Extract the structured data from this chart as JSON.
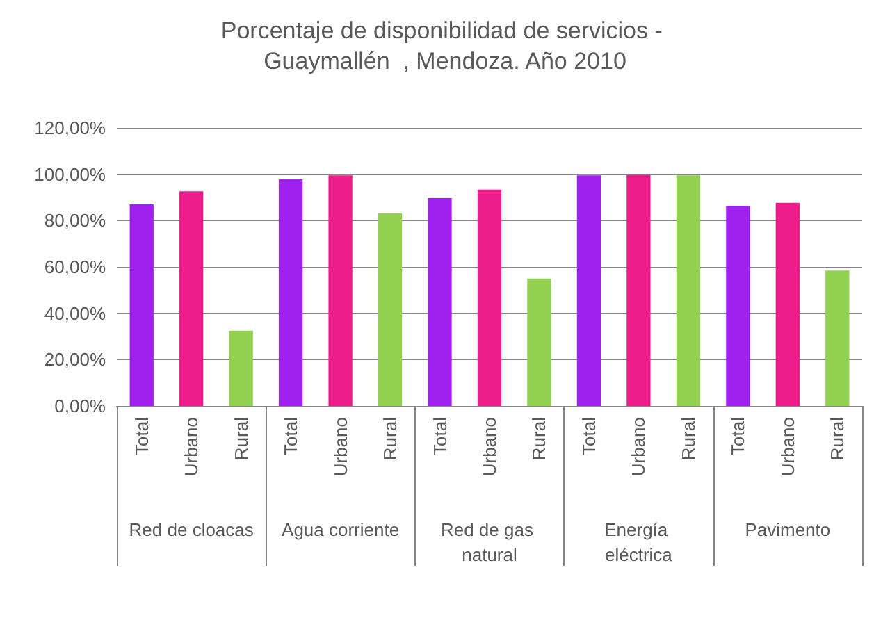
{
  "chart_data": {
    "type": "bar",
    "title": "Porcentaje de disponibilidad de servicios - Guaymallén  , Mendoza. Año 2010",
    "categories": [
      "Red de cloacas",
      "Agua corriente",
      "Red de gas natural",
      "Energía eléctrica",
      "Pavimento"
    ],
    "series": [
      {
        "name": "Total",
        "color": "#a020f0",
        "values": [
          87.0,
          97.8,
          89.7,
          99.5,
          86.3
        ]
      },
      {
        "name": "Urbano",
        "color": "#ed1e8c",
        "values": [
          92.6,
          99.5,
          93.4,
          99.7,
          87.7
        ]
      },
      {
        "name": "Rural",
        "color": "#92d050",
        "values": [
          32.5,
          83.1,
          55.0,
          99.5,
          58.4
        ]
      }
    ],
    "ylim": [
      0,
      120
    ],
    "yticks": [
      {
        "value": 0,
        "label": "0,00%"
      },
      {
        "value": 20,
        "label": "20,00%"
      },
      {
        "value": 40,
        "label": "40,00%"
      },
      {
        "value": 60,
        "label": "60,00%"
      },
      {
        "value": 80,
        "label": "80,00%"
      },
      {
        "value": 100,
        "label": "100,00%"
      },
      {
        "value": 120,
        "label": "120,00%"
      }
    ],
    "grid": "y",
    "legend": false
  }
}
